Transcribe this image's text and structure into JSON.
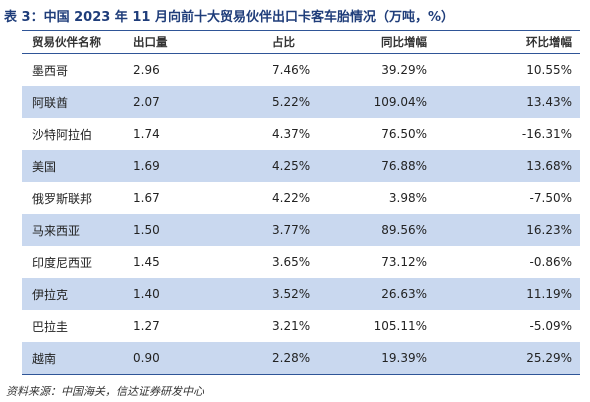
{
  "header": {
    "title": "表 3：中国 2023 年 11 月向前十大贸易伙伴出口卡客车胎情况（万吨，%）"
  },
  "table": {
    "columns": [
      "贸易伙伴名称",
      "出口量",
      "占比",
      "同比增幅",
      "环比增幅"
    ],
    "rows": [
      [
        "墨西哥",
        "2.96",
        "7.46%",
        "39.29%",
        "10.55%"
      ],
      [
        "阿联酋",
        "2.07",
        "5.22%",
        "109.04%",
        "13.43%"
      ],
      [
        "沙特阿拉伯",
        "1.74",
        "4.37%",
        "76.50%",
        "-16.31%"
      ],
      [
        "美国",
        "1.69",
        "4.25%",
        "76.88%",
        "13.68%"
      ],
      [
        "俄罗斯联邦",
        "1.67",
        "4.22%",
        "3.98%",
        "-7.50%"
      ],
      [
        "马来西亚",
        "1.50",
        "3.77%",
        "89.56%",
        "16.23%"
      ],
      [
        "印度尼西亚",
        "1.45",
        "3.65%",
        "73.12%",
        "-0.86%"
      ],
      [
        "伊拉克",
        "1.40",
        "3.52%",
        "26.63%",
        "11.19%"
      ],
      [
        "巴拉圭",
        "1.27",
        "3.21%",
        "105.11%",
        "-5.09%"
      ],
      [
        "越南",
        "0.90",
        "2.28%",
        "19.39%",
        "25.29%"
      ]
    ]
  },
  "footer": {
    "source": "资料来源：中国海关，信达证券研发中心"
  }
}
